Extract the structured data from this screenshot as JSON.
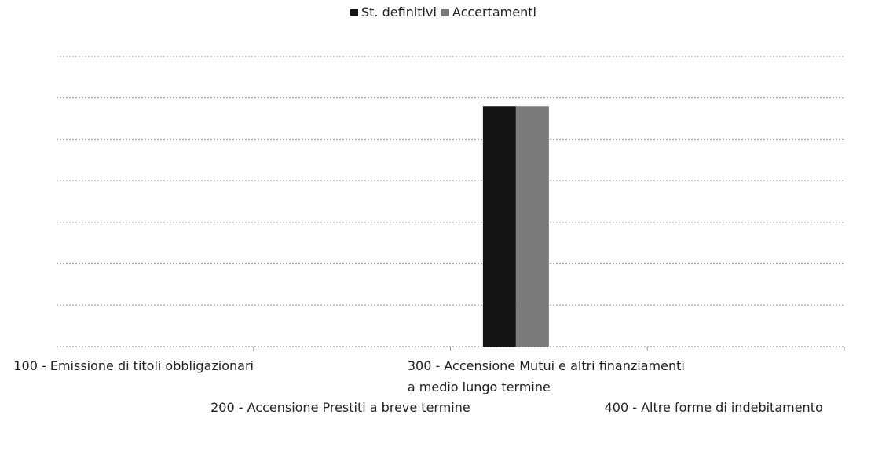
{
  "chart_data": {
    "type": "bar",
    "categories": [
      "100 - Emissione di titoli obbligazionari",
      "200 - Accensione Prestiti a breve termine",
      "300 - Accensione Mutui e altri finanziamenti a medio lungo termine",
      "400 - Altre forme di indebitamento"
    ],
    "series": [
      {
        "name": "St. definitivi",
        "color": "#141414",
        "values": [
          0,
          0,
          5.8,
          0
        ]
      },
      {
        "name": "Accertamenti",
        "color": "#7a7a7a",
        "values": [
          0,
          0,
          5.8,
          0
        ]
      }
    ],
    "ylim": [
      0,
      7
    ],
    "yticks": [
      0,
      1,
      2,
      3,
      4,
      5,
      6,
      7
    ],
    "grid": true,
    "legend": "top"
  }
}
